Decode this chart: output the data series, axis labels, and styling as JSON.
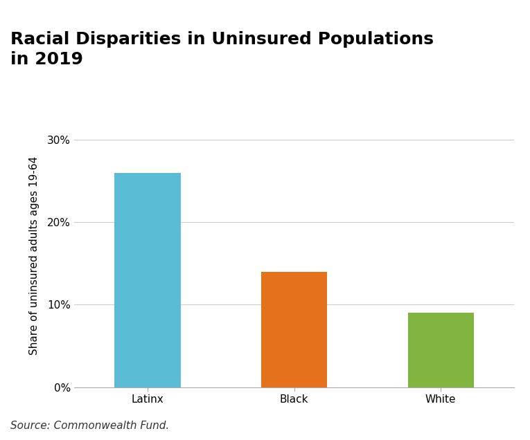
{
  "title_line1": "Racial Disparities in Uninsured Populations",
  "title_line2": "in 2019",
  "categories": [
    "Latinx",
    "Black",
    "White"
  ],
  "values": [
    0.26,
    0.14,
    0.09
  ],
  "bar_colors": [
    "#5bbcd6",
    "#e5711d",
    "#82b540"
  ],
  "ylabel": "Share of uninsured adults ages 19-64",
  "ylim": [
    0,
    0.32
  ],
  "yticks": [
    0,
    0.1,
    0.2,
    0.3
  ],
  "ytick_labels": [
    "0%",
    "10%",
    "20%",
    "30%"
  ],
  "source_text": "Source: Commonwealth Fund.",
  "background_color": "#ffffff",
  "title_fontsize": 18,
  "ylabel_fontsize": 11,
  "tick_fontsize": 11,
  "source_fontsize": 11,
  "bar_width": 0.45,
  "grid_color": "#cccccc",
  "spine_color": "#aaaaaa"
}
